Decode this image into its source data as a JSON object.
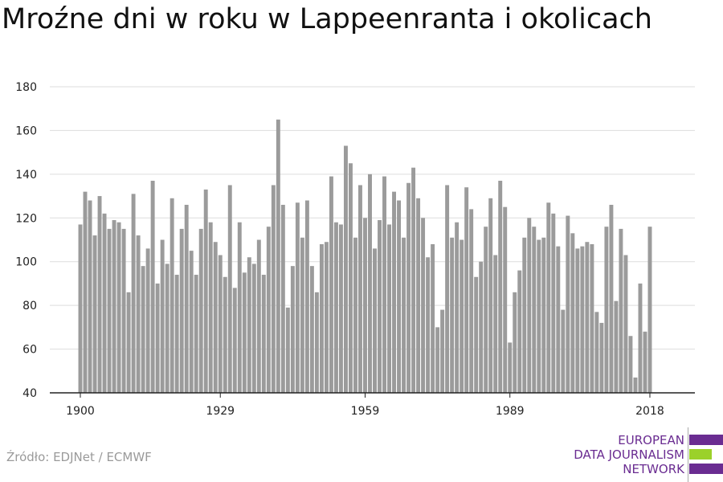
{
  "title": "Mroźne dni w roku w Lappeenranta i okolicach",
  "source": "Źródło: EDJNet / ECMWF",
  "logo": {
    "lines": [
      "EUROPEAN",
      "DATA JOURNALISM",
      "NETWORK"
    ],
    "colors": {
      "purple": "#6a2c91",
      "green": "#9bd12a"
    }
  },
  "colors": {
    "bar": "#9b9b9b",
    "grid": "#dddddd",
    "axis": "#222222"
  },
  "chart_data": {
    "type": "bar",
    "title": "Mroźne dni w roku w Lappeenranta i okolicach",
    "xlabel": "",
    "ylabel": "",
    "ylim": [
      40,
      180
    ],
    "yticks": [
      40,
      60,
      80,
      100,
      120,
      140,
      160,
      180
    ],
    "xticks": [
      1900,
      1929,
      1959,
      1989,
      2018
    ],
    "grid": true,
    "x_start": 1900,
    "x_end": 2021,
    "values": [
      117,
      132,
      128,
      112,
      130,
      122,
      115,
      119,
      118,
      115,
      86,
      131,
      112,
      98,
      106,
      137,
      90,
      110,
      99,
      129,
      94,
      115,
      126,
      105,
      94,
      115,
      133,
      118,
      109,
      103,
      93,
      135,
      88,
      118,
      95,
      102,
      99,
      110,
      94,
      116,
      135,
      165,
      126,
      79,
      98,
      127,
      111,
      128,
      98,
      86,
      108,
      109,
      139,
      118,
      117,
      153,
      145,
      111,
      135,
      120,
      140,
      106,
      119,
      139,
      117,
      132,
      128,
      111,
      136,
      143,
      129,
      120,
      102,
      108,
      70,
      78,
      135,
      111,
      118,
      110,
      134,
      124,
      93,
      100,
      116,
      129,
      103,
      137,
      125,
      63,
      86,
      96,
      111,
      120,
      116,
      110,
      111,
      127,
      122,
      107,
      78,
      121,
      113,
      106,
      107,
      109,
      108,
      77,
      72,
      116,
      126,
      82,
      115,
      103,
      66,
      47,
      90,
      68,
      116
    ]
  }
}
